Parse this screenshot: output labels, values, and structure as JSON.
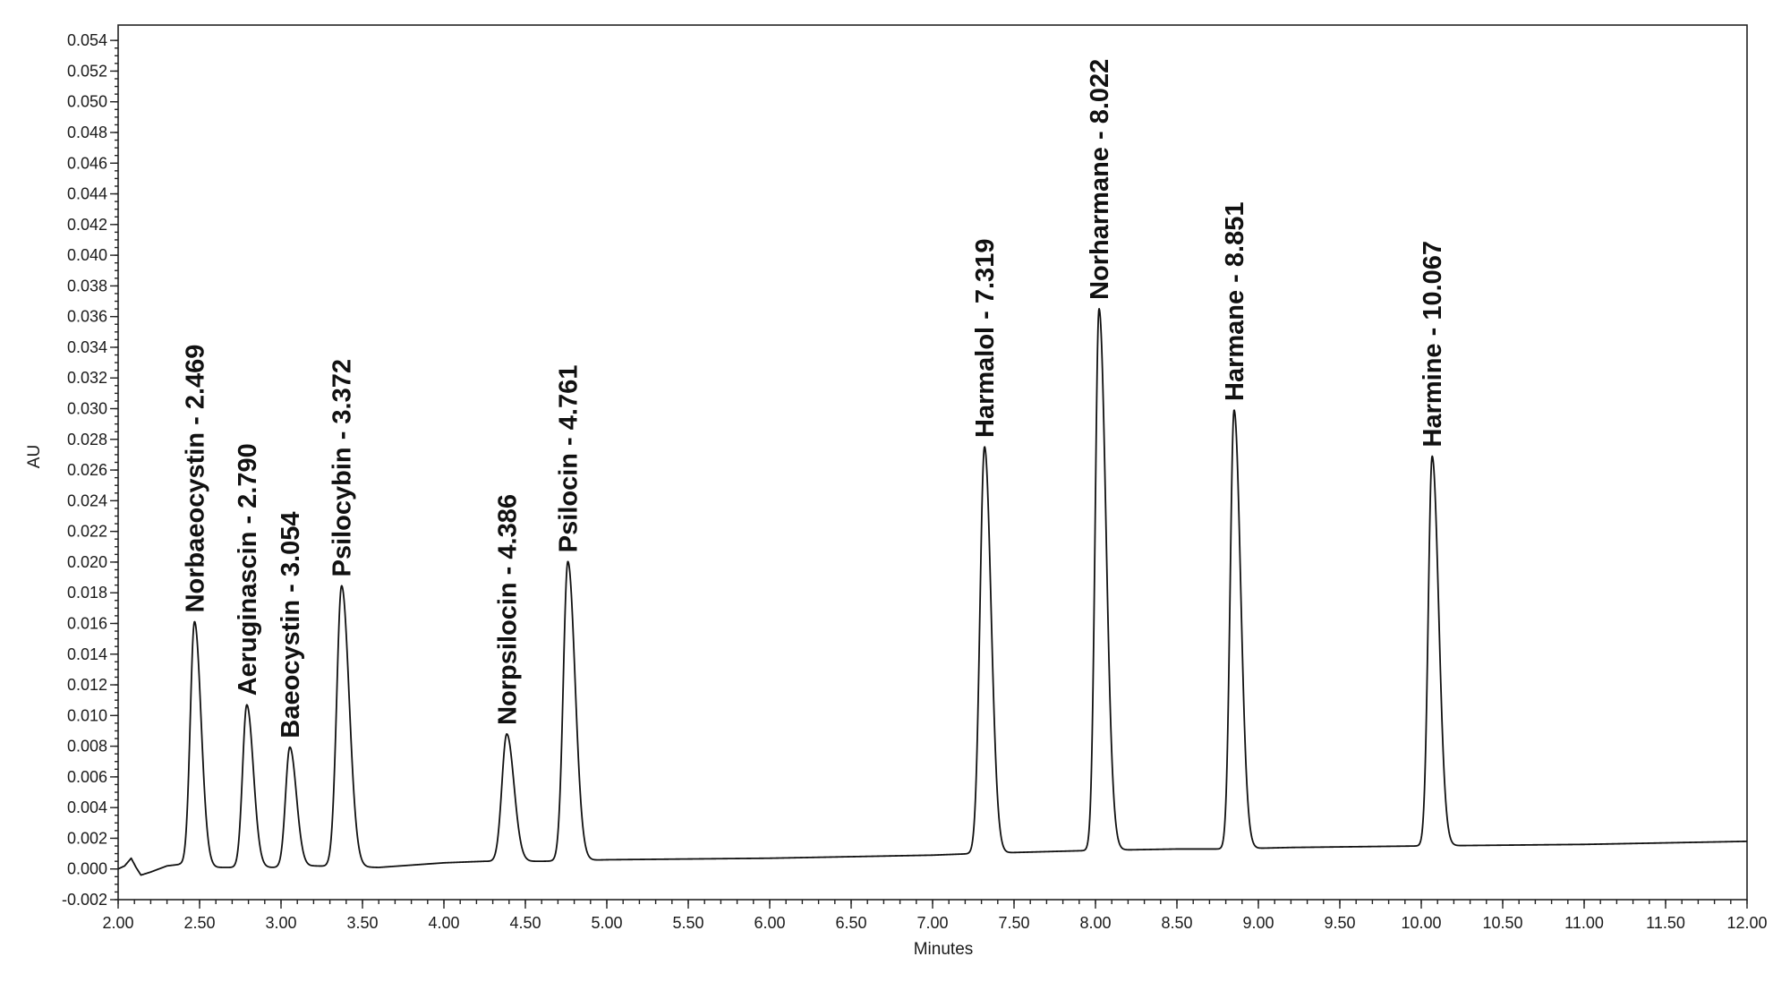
{
  "chart_data": {
    "type": "line",
    "xlabel": "Minutes",
    "ylabel": "AU",
    "xlim": [
      2.0,
      12.0
    ],
    "ylim": [
      -0.002,
      0.055
    ],
    "grid": false,
    "x_ticks": [
      "2.00",
      "2.50",
      "3.00",
      "3.50",
      "4.00",
      "4.50",
      "5.00",
      "5.50",
      "6.00",
      "6.50",
      "7.00",
      "7.50",
      "8.00",
      "8.50",
      "9.00",
      "9.50",
      "10.00",
      "10.50",
      "11.00",
      "11.50",
      "12.00"
    ],
    "y_ticks": [
      "-0.002",
      "0.000",
      "0.002",
      "0.004",
      "0.006",
      "0.008",
      "0.010",
      "0.012",
      "0.014",
      "0.016",
      "0.018",
      "0.020",
      "0.022",
      "0.024",
      "0.026",
      "0.028",
      "0.030",
      "0.032",
      "0.034",
      "0.036",
      "0.038",
      "0.040",
      "0.042",
      "0.044",
      "0.046",
      "0.048",
      "0.050",
      "0.052",
      "0.054"
    ],
    "baseline": [
      {
        "x": 2.0,
        "y": 0.0
      },
      {
        "x": 2.04,
        "y": 0.0002
      },
      {
        "x": 2.08,
        "y": 0.0007
      },
      {
        "x": 2.11,
        "y": 0.0001
      },
      {
        "x": 2.14,
        "y": -0.0004
      },
      {
        "x": 2.2,
        "y": -0.0002
      },
      {
        "x": 2.3,
        "y": 0.0002
      },
      {
        "x": 2.38,
        "y": 0.0003
      },
      {
        "x": 2.6,
        "y": 0.0001
      },
      {
        "x": 2.7,
        "y": 0.0001
      },
      {
        "x": 2.95,
        "y": 0.0001
      },
      {
        "x": 3.2,
        "y": 0.0002
      },
      {
        "x": 3.6,
        "y": 0.0001
      },
      {
        "x": 4.0,
        "y": 0.0004
      },
      {
        "x": 4.25,
        "y": 0.0005
      },
      {
        "x": 4.6,
        "y": 0.0005
      },
      {
        "x": 5.0,
        "y": 0.0006
      },
      {
        "x": 6.0,
        "y": 0.0007
      },
      {
        "x": 7.0,
        "y": 0.0009
      },
      {
        "x": 7.25,
        "y": 0.001
      },
      {
        "x": 7.6,
        "y": 0.0011
      },
      {
        "x": 7.95,
        "y": 0.0012
      },
      {
        "x": 8.5,
        "y": 0.0013
      },
      {
        "x": 8.8,
        "y": 0.0013
      },
      {
        "x": 9.2,
        "y": 0.0014
      },
      {
        "x": 10.0,
        "y": 0.0015
      },
      {
        "x": 11.0,
        "y": 0.0016
      },
      {
        "x": 12.0,
        "y": 0.0018
      }
    ],
    "peaks": [
      {
        "name": "Norbaeocystin - 2.469",
        "x": 2.469,
        "height": 0.0159,
        "lw": 0.026,
        "rw": 0.04
      },
      {
        "name": "Aeruginascin - 2.790",
        "x": 2.79,
        "height": 0.0106,
        "lw": 0.026,
        "rw": 0.04
      },
      {
        "name": "Baeocystin - 3.054",
        "x": 3.054,
        "height": 0.0078,
        "lw": 0.026,
        "rw": 0.04
      },
      {
        "name": "Psilocybin - 3.372",
        "x": 3.372,
        "height": 0.0183,
        "lw": 0.03,
        "rw": 0.046
      },
      {
        "name": "Norpsilocin - 4.386",
        "x": 4.386,
        "height": 0.0083,
        "lw": 0.03,
        "rw": 0.044
      },
      {
        "name": "Psilocin - 4.761",
        "x": 4.761,
        "height": 0.0195,
        "lw": 0.028,
        "rw": 0.044
      },
      {
        "name": "Harmalol - 7.319",
        "x": 7.319,
        "height": 0.0265,
        "lw": 0.028,
        "rw": 0.04
      },
      {
        "name": "Norharmane - 8.022",
        "x": 8.022,
        "height": 0.0353,
        "lw": 0.024,
        "rw": 0.042
      },
      {
        "name": "Harmane - 8.851",
        "x": 8.851,
        "height": 0.0286,
        "lw": 0.024,
        "rw": 0.04
      },
      {
        "name": "Harmine - 10.067",
        "x": 10.067,
        "height": 0.0254,
        "lw": 0.024,
        "rw": 0.04
      }
    ]
  }
}
